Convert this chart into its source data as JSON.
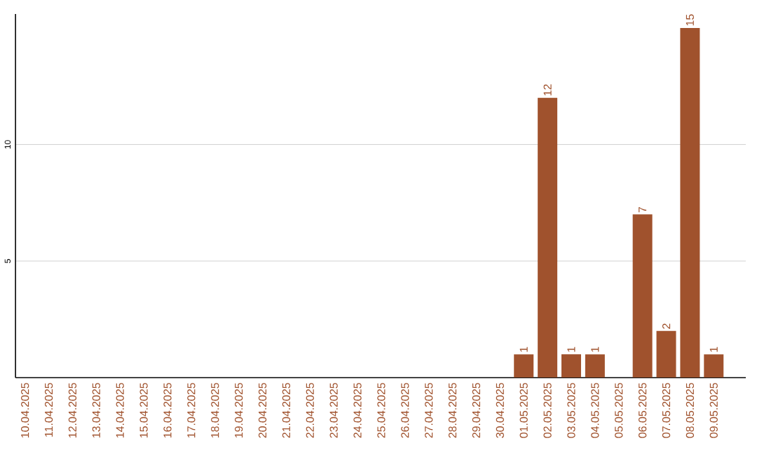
{
  "chart_data": {
    "type": "bar",
    "categories": [
      "10.04.2025",
      "11.04.2025",
      "12.04.2025",
      "13.04.2025",
      "14.04.2025",
      "15.04.2025",
      "16.04.2025",
      "17.04.2025",
      "18.04.2025",
      "19.04.2025",
      "20.04.2025",
      "21.04.2025",
      "22.04.2025",
      "23.04.2025",
      "24.04.2025",
      "25.04.2025",
      "26.04.2025",
      "27.04.2025",
      "28.04.2025",
      "29.04.2025",
      "30.04.2025",
      "01.05.2025",
      "02.05.2025",
      "03.05.2025",
      "04.05.2025",
      "05.05.2025",
      "06.05.2025",
      "07.05.2025",
      "08.05.2025",
      "09.05.2025"
    ],
    "values": [
      0,
      0,
      0,
      0,
      0,
      0,
      0,
      0,
      0,
      0,
      0,
      0,
      0,
      0,
      0,
      0,
      0,
      0,
      0,
      0,
      0,
      1,
      12,
      1,
      1,
      0,
      7,
      2,
      15,
      1
    ],
    "value_labels": [
      null,
      null,
      null,
      null,
      null,
      null,
      null,
      null,
      null,
      null,
      null,
      null,
      null,
      null,
      null,
      null,
      null,
      null,
      null,
      null,
      null,
      "1",
      "12",
      "1",
      "1",
      null,
      "7",
      "2",
      "15",
      "1"
    ],
    "color": "#a0522d",
    "ylim": [
      0,
      15.6
    ],
    "yticks": [
      5,
      10
    ],
    "grid": "y"
  }
}
